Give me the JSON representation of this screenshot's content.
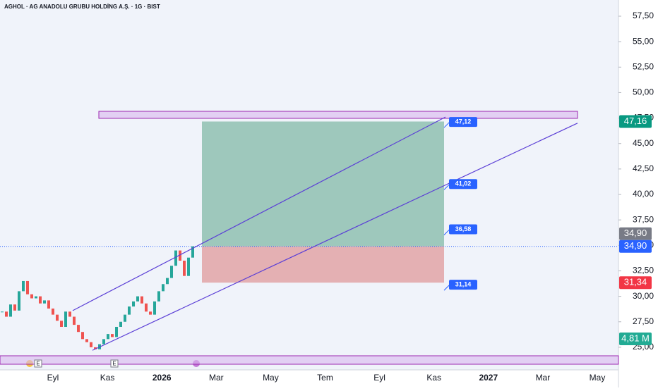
{
  "chart_data": {
    "type": "candlestick",
    "title": "AGHOL · AG ANADOLU GRUBU HOLDİNG A.Ş. · 1G · BIST",
    "closes": [
      28.5,
      28.0,
      29.2,
      28.6,
      30.5,
      31.5,
      30.2,
      29.8,
      30.0,
      29.3,
      29.6,
      28.8,
      28.2,
      27.6,
      27.0,
      28.5,
      28.0,
      27.2,
      26.5,
      25.8,
      25.5,
      25.0,
      24.8,
      25.3,
      25.8,
      26.3,
      26.0,
      27.0,
      27.5,
      28.2,
      29.0,
      29.5,
      30.0,
      29.3,
      28.5,
      28.2,
      29.5,
      30.5,
      31.2,
      31.8,
      33.0,
      34.5,
      33.5,
      32.0,
      33.8,
      34.9
    ],
    "up_color": "#26a69a",
    "down_color": "#ef5350",
    "ylim": [
      22.78,
      59.09
    ],
    "yticks": [
      {
        "value": 25,
        "label": "25,00"
      },
      {
        "value": 27.5,
        "label": "27,50"
      },
      {
        "value": 30,
        "label": "30,00"
      },
      {
        "value": 32.5,
        "label": "32,50"
      },
      {
        "value": 35,
        "label": "35,00"
      },
      {
        "value": 37.5,
        "label": "37,50"
      },
      {
        "value": 40,
        "label": "40,00"
      },
      {
        "value": 42.5,
        "label": "42,50"
      },
      {
        "value": 45,
        "label": "45,00"
      },
      {
        "value": 47.5,
        "label": "47,50"
      },
      {
        "value": 50,
        "label": "50,00"
      },
      {
        "value": 52.5,
        "label": "52,50"
      },
      {
        "value": 55,
        "label": "55,00"
      },
      {
        "value": 57.5,
        "label": "57,50"
      }
    ],
    "xticks": [
      "Eyl",
      "Kas",
      "2026",
      "Mar",
      "May",
      "Tem",
      "Eyl",
      "Kas",
      "2027",
      "Mar",
      "May"
    ],
    "position": {
      "entry": {
        "value": 34.9,
        "label": "34,90"
      },
      "target": {
        "value": 47.16,
        "label": "47,16"
      },
      "stop": {
        "value": 31.34,
        "label": "31,34"
      }
    },
    "last_price": {
      "value": 34.9,
      "label": "34,90"
    },
    "volume_label": "4,81 M",
    "channel": {
      "upper": [
        28.6,
        47.6
      ],
      "lower": [
        24.7,
        47.0
      ]
    },
    "targets": [
      {
        "value": 47.12,
        "label": "47,12"
      },
      {
        "value": 41.02,
        "label": "41,02"
      },
      {
        "value": 36.58,
        "label": "36,58"
      },
      {
        "value": 31.14,
        "label": "31,14"
      }
    ],
    "events": [
      "E",
      "E"
    ]
  }
}
